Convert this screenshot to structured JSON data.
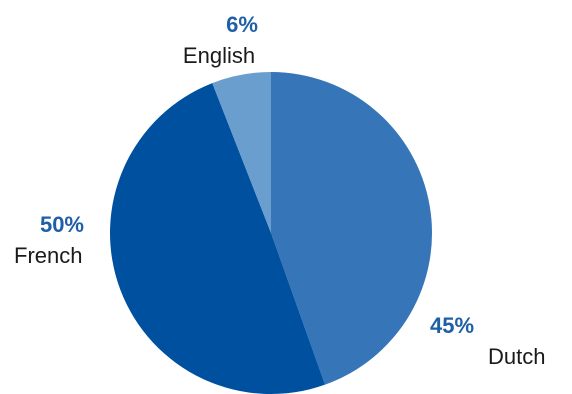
{
  "chart_data": {
    "type": "pie",
    "title": "",
    "slices": [
      {
        "label": "Dutch",
        "value": 45,
        "display": "45%",
        "color": "#3575b8"
      },
      {
        "label": "French",
        "value": 50,
        "display": "50%",
        "color": "#0050a0"
      },
      {
        "label": "English",
        "value": 6,
        "display": "6%",
        "color": "#6a9ecf"
      }
    ],
    "start_angle_deg": 0,
    "direction": "clockwise",
    "label_color": "#1f5fa6",
    "legend": "none"
  }
}
